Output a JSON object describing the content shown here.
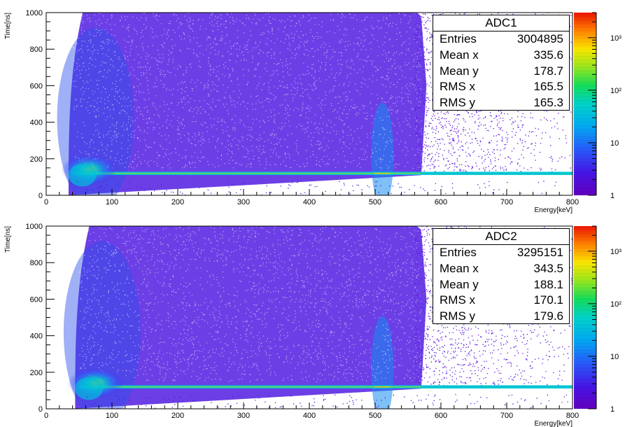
{
  "chart_data": [
    {
      "type": "heatmap",
      "title": "",
      "xlabel": "Energy[keV]",
      "ylabel": "Time[ns]",
      "xlim": [
        0,
        800
      ],
      "ylim": [
        0,
        1000
      ],
      "x_ticks": [
        0,
        100,
        200,
        300,
        400,
        500,
        600,
        700,
        800
      ],
      "y_ticks": [
        0,
        200,
        400,
        600,
        800,
        1000
      ],
      "colorbar": {
        "scale": "log",
        "range": [
          1,
          3000
        ],
        "tick_labels": [
          "1",
          "10",
          "10²",
          "10³"
        ],
        "tick_values": [
          1,
          10,
          100,
          1000
        ]
      },
      "features": {
        "low_energy_edge_keV": 30,
        "prompt_band_time_ns": 120,
        "annihilation_peak_keV": 511,
        "dense_region_cutoff_keV": 570
      },
      "stats": {
        "name": "ADC1",
        "rows": [
          {
            "label": "Entries",
            "value": "3004895"
          },
          {
            "label": "Mean x",
            "value": "335.6"
          },
          {
            "label": "Mean y",
            "value": "178.7"
          },
          {
            "label": "RMS x",
            "value": "165.5"
          },
          {
            "label": "RMS y",
            "value": "165.3"
          }
        ]
      }
    },
    {
      "type": "heatmap",
      "title": "",
      "xlabel": "Energy[keV]",
      "ylabel": "Time[ns]",
      "xlim": [
        0,
        800
      ],
      "ylim": [
        0,
        1000
      ],
      "x_ticks": [
        0,
        100,
        200,
        300,
        400,
        500,
        600,
        700,
        800
      ],
      "y_ticks": [
        0,
        200,
        400,
        600,
        800,
        1000
      ],
      "colorbar": {
        "scale": "log",
        "range": [
          1,
          3000
        ],
        "tick_labels": [
          "1",
          "10",
          "10²",
          "10³"
        ],
        "tick_values": [
          1,
          10,
          100,
          1000
        ]
      },
      "features": {
        "low_energy_edge_keV": 40,
        "prompt_band_time_ns": 120,
        "annihilation_peak_keV": 511,
        "dense_region_cutoff_keV": 570
      },
      "stats": {
        "name": "ADC2",
        "rows": [
          {
            "label": "Entries",
            "value": "3295151"
          },
          {
            "label": "Mean x",
            "value": "343.5"
          },
          {
            "label": "Mean y",
            "value": "188.1"
          },
          {
            "label": "RMS x",
            "value": "170.1"
          },
          {
            "label": "RMS y",
            "value": "179.6"
          }
        ]
      }
    }
  ]
}
